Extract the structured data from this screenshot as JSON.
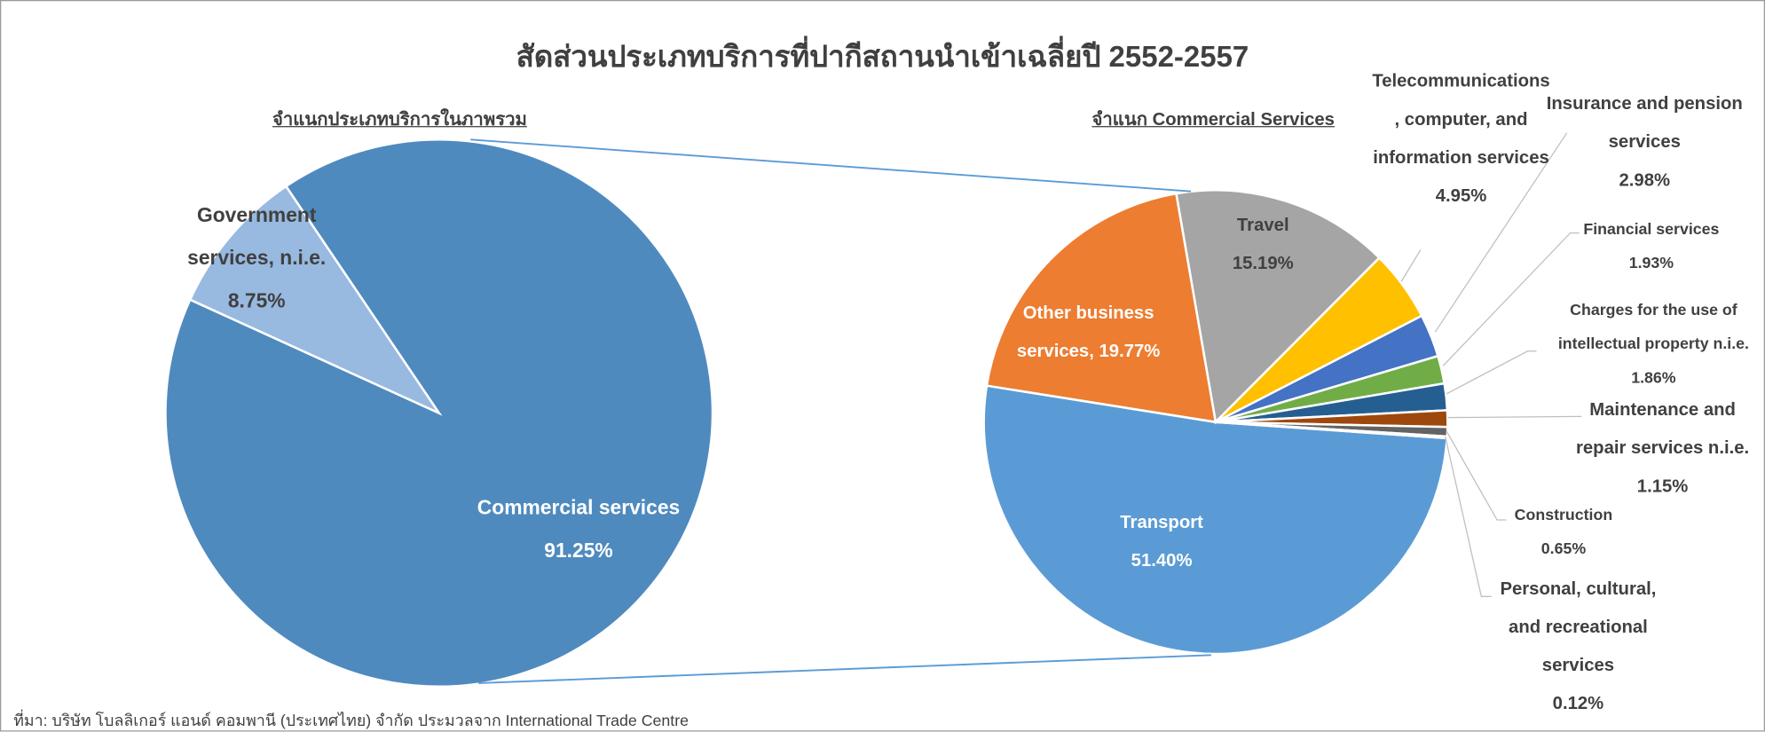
{
  "title": "สัดส่วนประเภทบริการที่ปากีสถานนำเข้าเฉลี่ยปี 2552-2557",
  "source": "ที่มา: บริษัท โบลลิเกอร์ แอนด์ คอมพานี (ประเทศไทย) จำกัด ประมวลจาก International Trade Centre",
  "chart_data": [
    {
      "type": "pie",
      "subtitle": "จำแนกประเภทบริการในภาพรวม",
      "categories": [
        "Commercial services",
        "Government services, n.i.e."
      ],
      "values": [
        91.25,
        8.75
      ],
      "value_labels": [
        "91.25%",
        "8.75%"
      ],
      "colors": [
        "#4f8abe",
        "#98b9e0"
      ]
    },
    {
      "type": "pie",
      "subtitle": "จำแนก Commercial Services",
      "categories": [
        "Transport",
        "Other business services,",
        "Travel",
        "Telecommunications, computer, and information services",
        "Insurance and pension services",
        "Financial services",
        "Charges for the use of intellectual property n.i.e.",
        "Maintenance and repair services n.i.e.",
        "Construction",
        "Personal, cultural, and recreational services"
      ],
      "values": [
        51.4,
        19.77,
        15.19,
        4.95,
        2.98,
        1.93,
        1.86,
        1.15,
        0.65,
        0.12
      ],
      "value_labels": [
        "51.40%",
        "19.77%",
        "15.19%",
        "4.95%",
        "2.98%",
        "1.93%",
        "1.86%",
        "1.15%",
        "0.65%",
        "0.12%"
      ],
      "colors": [
        "#5b9bd5",
        "#ed7d31",
        "#a5a5a5",
        "#ffc000",
        "#4472c4",
        "#70ad47",
        "#255e91",
        "#9e480e",
        "#636363",
        "#997300"
      ]
    }
  ]
}
